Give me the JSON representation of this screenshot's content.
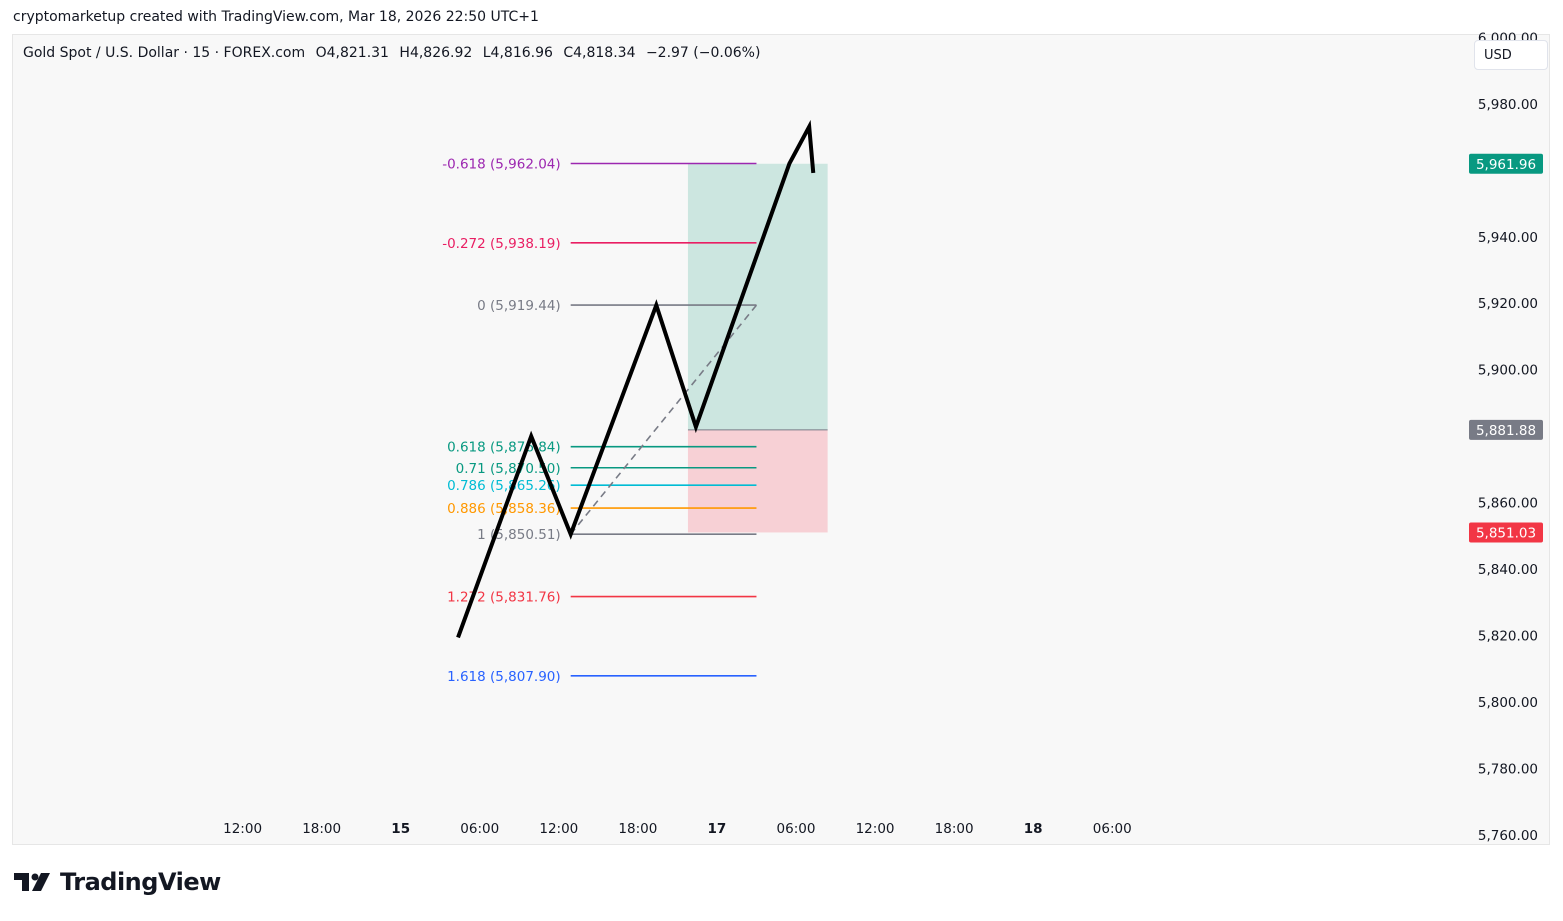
{
  "attribution": "cryptomarketup created with TradingView.com, Mar 18, 2026 22:50 UTC+1",
  "legend": {
    "symbol": "Gold Spot / U.S. Dollar · 15 · FOREX.com",
    "open": "O4,821.31",
    "high": "H4,826.92",
    "low": "L4,816.96",
    "close": "C4,818.34",
    "change": "−2.97 (−0.06%)"
  },
  "currency_button": "USD",
  "logo_text": "TradingView",
  "chart_data": {
    "type": "line",
    "y_axis": {
      "range": [
        5757,
        6001
      ],
      "ticks": [
        {
          "value": 6000,
          "label": "6,000.00"
        },
        {
          "value": 5980,
          "label": "5,980.00"
        },
        {
          "value": 5940,
          "label": "5,940.00"
        },
        {
          "value": 5920,
          "label": "5,920.00"
        },
        {
          "value": 5900,
          "label": "5,900.00"
        },
        {
          "value": 5860,
          "label": "5,860.00"
        },
        {
          "value": 5840,
          "label": "5,840.00"
        },
        {
          "value": 5820,
          "label": "5,820.00"
        },
        {
          "value": 5800,
          "label": "5,800.00"
        },
        {
          "value": 5780,
          "label": "5,780.00"
        },
        {
          "value": 5760,
          "label": "5,760.00"
        }
      ]
    },
    "x_axis": {
      "unit": "hours from Mar 14 00:00",
      "range": [
        -5.5,
        105
      ],
      "ticks": [
        {
          "value": 12,
          "label": "12:00",
          "bold": false
        },
        {
          "value": 18,
          "label": "18:00",
          "bold": false
        },
        {
          "value": 24,
          "label": "15",
          "bold": true
        },
        {
          "value": 30,
          "label": "06:00",
          "bold": false
        },
        {
          "value": 36,
          "label": "12:00",
          "bold": false
        },
        {
          "value": 42,
          "label": "18:00",
          "bold": false
        },
        {
          "value": 48,
          "label": "17",
          "bold": true
        },
        {
          "value": 54,
          "label": "06:00",
          "bold": false
        },
        {
          "value": 60,
          "label": "12:00",
          "bold": false
        },
        {
          "value": 66,
          "label": "18:00",
          "bold": false
        },
        {
          "value": 72,
          "label": "18",
          "bold": true
        },
        {
          "value": 78,
          "label": "06:00",
          "bold": false
        }
      ]
    },
    "price_badges": [
      {
        "value": 5961.96,
        "label": "5,961.96",
        "color": "#089981"
      },
      {
        "value": 5881.88,
        "label": "5,881.88",
        "color": "#787b86"
      },
      {
        "value": 5851.03,
        "label": "5,851.03",
        "color": "#f23645"
      }
    ],
    "fib": {
      "x_start": 36.9,
      "x_end": 51.0,
      "levels": [
        {
          "ratio": "-0.618",
          "value": 5962.04,
          "label": "-0.618 (5,962.04)",
          "color": "#9c27b0"
        },
        {
          "ratio": "-0.272",
          "value": 5938.19,
          "label": "-0.272 (5,938.19)",
          "color": "#e91e63"
        },
        {
          "ratio": "0",
          "value": 5919.44,
          "label": "0 (5,919.44)",
          "color": "#787b86"
        },
        {
          "ratio": "0.618",
          "value": 5876.84,
          "label": "0.618 (5,876.84)",
          "color": "#089981"
        },
        {
          "ratio": "0.71",
          "value": 5870.5,
          "label": "0.71 (5,870.50)",
          "color": "#089981"
        },
        {
          "ratio": "0.786",
          "value": 5865.26,
          "label": "0.786 (5,865.26)",
          "color": "#00bcd4"
        },
        {
          "ratio": "0.886",
          "value": 5858.36,
          "label": "0.886 (5,858.36)",
          "color": "#ff9800"
        },
        {
          "ratio": "1",
          "value": 5850.51,
          "label": "1 (5,850.51)",
          "color": "#787b86"
        },
        {
          "ratio": "1.272",
          "value": 5831.76,
          "label": "1.272 (5,831.76)",
          "color": "#f23645"
        },
        {
          "ratio": "1.618",
          "value": 5807.9,
          "label": "1.618 (5,807.90)",
          "color": "#2962ff"
        }
      ],
      "trend_line": {
        "from": {
          "x": 36.9,
          "y": 5850.51
        },
        "to": {
          "x": 51.0,
          "y": 5919.44
        }
      }
    },
    "position": {
      "x_start": 45.8,
      "x_end": 56.4,
      "target": 5961.96,
      "entry": 5881.88,
      "stop": 5851.03,
      "profit_color": "#cce6e0",
      "loss_color": "#f7d0d5"
    },
    "path": [
      {
        "x": 28.4,
        "y": 5820
      },
      {
        "x": 33.9,
        "y": 5880
      },
      {
        "x": 36.9,
        "y": 5850.5
      },
      {
        "x": 43.4,
        "y": 5919.4
      },
      {
        "x": 46.4,
        "y": 5882.8
      },
      {
        "x": 53.5,
        "y": 5962.0
      },
      {
        "x": 55.0,
        "y": 5973.1
      },
      {
        "x": 55.3,
        "y": 5959.8
      }
    ]
  }
}
